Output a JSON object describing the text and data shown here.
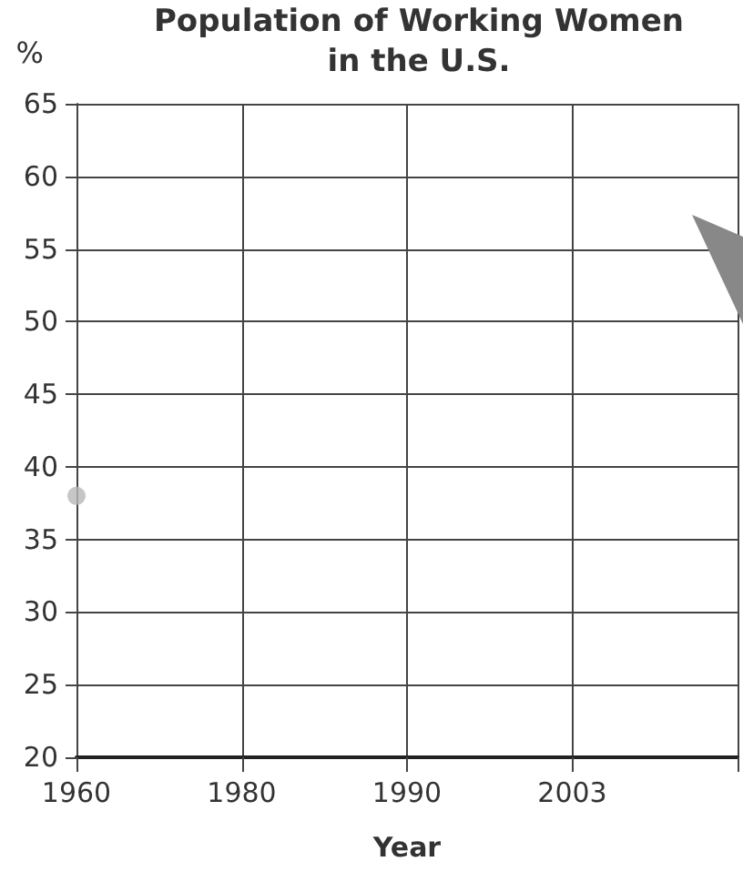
{
  "chart_data": {
    "type": "scatter",
    "title": "Population of Working Women\nin the U.S.",
    "xlabel": "Year",
    "ylabel": "%",
    "categories": [
      "1960",
      "1980",
      "1990",
      "2003",
      null
    ],
    "series": [
      {
        "color": "#b8b8b8",
        "values": [
          38,
          null,
          null,
          null,
          null
        ]
      }
    ],
    "ylim": [
      20,
      65
    ],
    "yticks": [
      20,
      25,
      30,
      35,
      40,
      45,
      50,
      55,
      60,
      65
    ],
    "grid": true,
    "marker": "circle"
  }
}
